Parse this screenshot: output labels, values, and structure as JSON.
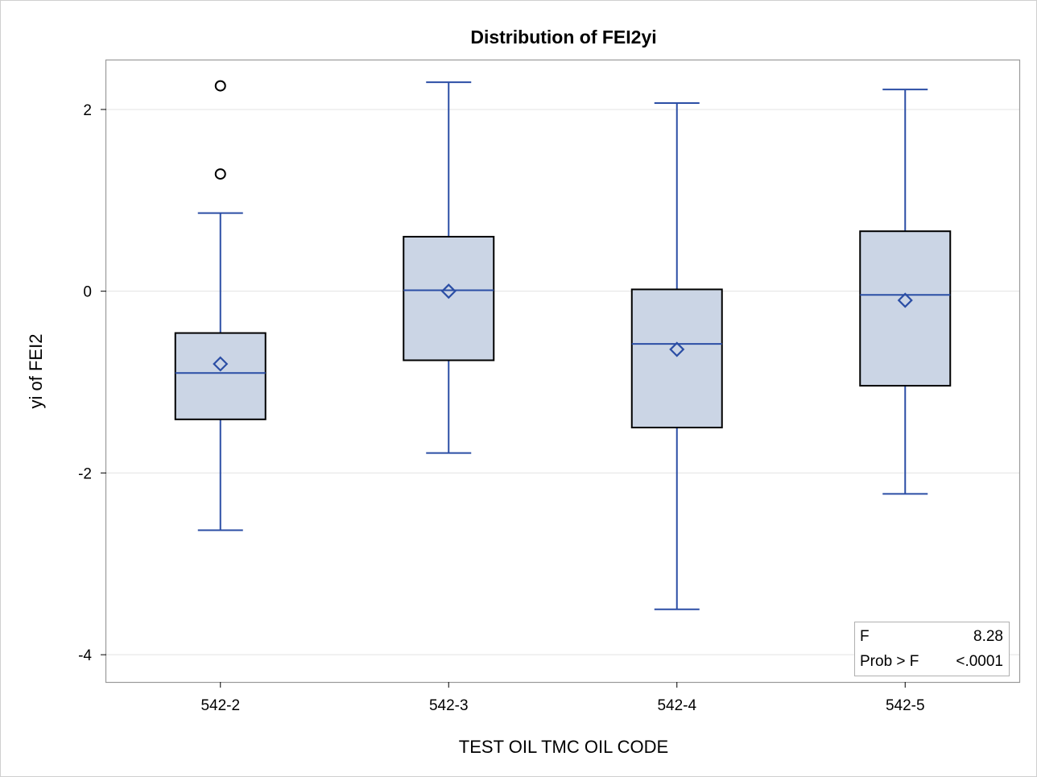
{
  "chart_data": {
    "type": "box",
    "title": "Distribution of FEI2yi",
    "xlabel": "TEST OIL TMC OIL CODE",
    "ylabel": "yi of FEI2",
    "ylim": [
      -4.3,
      2.54
    ],
    "yticks": [
      -4,
      -2,
      0,
      2
    ],
    "grid": "horizontal",
    "colors": {
      "box_fill": "#cbd5e5",
      "whisker": "#2b4ea5",
      "box_border": "#000000",
      "outlier": "#000000",
      "grid": "#e3e3e3",
      "frame": "#9a9a9a"
    },
    "categories": [
      "542-2",
      "542-3",
      "542-4",
      "542-5"
    ],
    "boxes": [
      {
        "category": "542-2",
        "whisker_low": -2.63,
        "q1": -1.41,
        "median": -0.9,
        "q3": -0.46,
        "whisker_high": 0.86,
        "mean": -0.8,
        "outliers": [
          1.29,
          2.26
        ]
      },
      {
        "category": "542-3",
        "whisker_low": -1.78,
        "q1": -0.76,
        "median": 0.01,
        "q3": 0.6,
        "whisker_high": 2.3,
        "mean": 0.0,
        "outliers": []
      },
      {
        "category": "542-4",
        "whisker_low": -3.5,
        "q1": -1.5,
        "median": -0.58,
        "q3": 0.02,
        "whisker_high": 2.07,
        "mean": -0.64,
        "outliers": []
      },
      {
        "category": "542-5",
        "whisker_low": -2.23,
        "q1": -1.04,
        "median": -0.04,
        "q3": 0.66,
        "whisker_high": 2.22,
        "mean": -0.1,
        "outliers": []
      }
    ],
    "inset": {
      "placement": "bottom-right",
      "rows": [
        {
          "label": "F",
          "value": "8.28"
        },
        {
          "label": "Prob > F",
          "value": "<.0001"
        }
      ]
    }
  }
}
